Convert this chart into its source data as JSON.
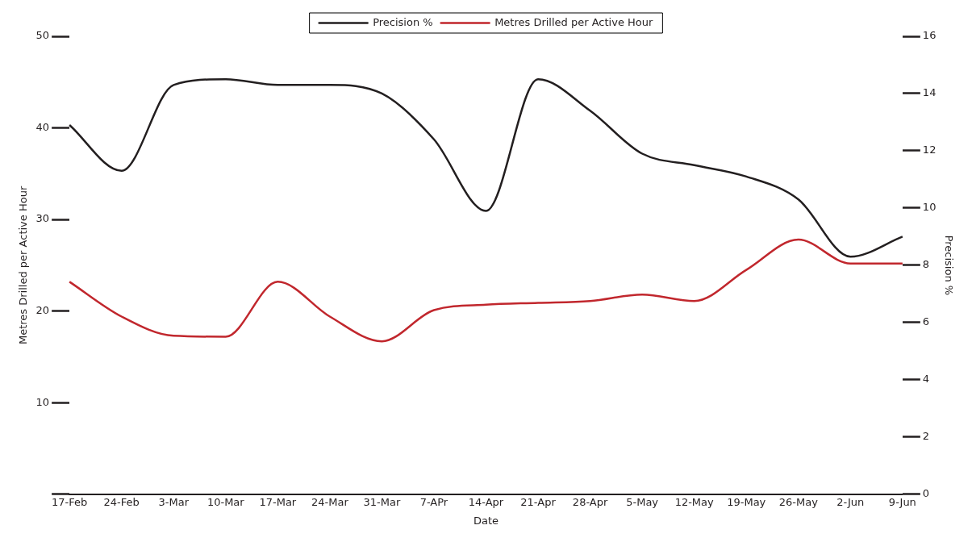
{
  "chart_data": {
    "type": "line",
    "xlabel": "Date",
    "ylabel": "Metres Drilled per Active Hour",
    "y2label": "Precision %",
    "categories": [
      "17-Feb",
      "24-Feb",
      "3-Mar",
      "10-Mar",
      "17-Mar",
      "24-Mar",
      "31-Mar",
      "7-APr",
      "14-Apr",
      "21-Apr",
      "28-Apr",
      "5-May",
      "12-May",
      "19-May",
      "26-May",
      "2-Jun",
      "9-Jun"
    ],
    "series": [
      {
        "name": "Precision %",
        "color": "#231f20",
        "axis": "y2",
        "values": [
          12.9,
          11.3,
          14.3,
          14.5,
          14.3,
          14.3,
          14.0,
          12.4,
          9.9,
          14.5,
          13.4,
          11.9,
          11.5,
          11.1,
          10.3,
          8.3,
          9.0
        ]
      },
      {
        "name": "Metres Drilled per Active Hour",
        "color": "#c1272d",
        "axis": "y",
        "values": [
          23.2,
          19.4,
          17.3,
          17.2,
          23.2,
          19.4,
          16.7,
          20.1,
          20.7,
          20.9,
          21.1,
          21.8,
          21.1,
          24.5,
          27.8,
          25.2,
          25.2
        ]
      }
    ],
    "ylim": [
      0,
      50
    ],
    "yticks": [
      {
        "value": 0,
        "label": null
      },
      10,
      20,
      30,
      40,
      50
    ],
    "y2lim": [
      0,
      16
    ],
    "y2ticks": [
      0,
      2,
      4,
      6,
      8,
      10,
      12,
      14,
      16
    ],
    "legend": "top",
    "grid": false,
    "marker": "none",
    "line_style": "solid"
  }
}
